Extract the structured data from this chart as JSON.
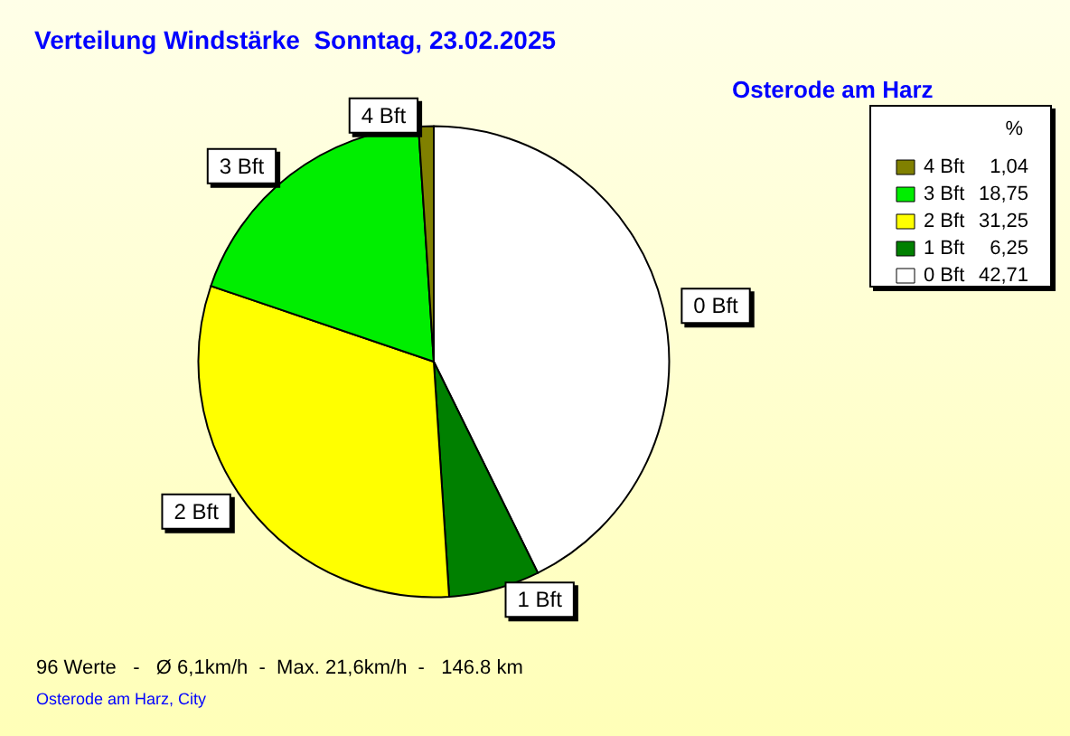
{
  "chart_data": {
    "type": "pie",
    "title": "Verteilung Windstärke  Sonntag, 23.02.2025",
    "subtitle": "Osterode am Harz",
    "categories": [
      "0 Bft",
      "1 Bft",
      "2 Bft",
      "3 Bft",
      "4 Bft"
    ],
    "values": [
      42.71,
      6.25,
      31.25,
      18.75,
      1.04
    ],
    "value_labels": [
      "42,71",
      "6,25",
      "31,25",
      "18,75",
      "1,04"
    ],
    "colors": [
      "#ffffff",
      "#008000",
      "#ffff00",
      "#00ee00",
      "#808000"
    ],
    "legend": "top right",
    "legend_title": "%",
    "annotations": [
      "96 Werte   -   Ø 6,1km/h  -  Max. 21,6km/h  -   146.8 km",
      "Osterode am Harz, City"
    ]
  }
}
